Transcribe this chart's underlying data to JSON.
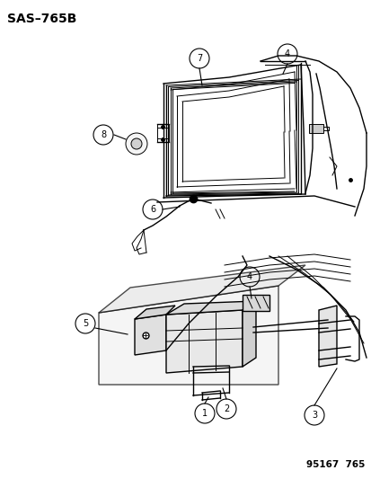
{
  "title": "SAS–765B",
  "footer": "95167  765",
  "bg_color": "#ffffff",
  "title_fontsize": 10,
  "footer_fontsize": 7.5
}
